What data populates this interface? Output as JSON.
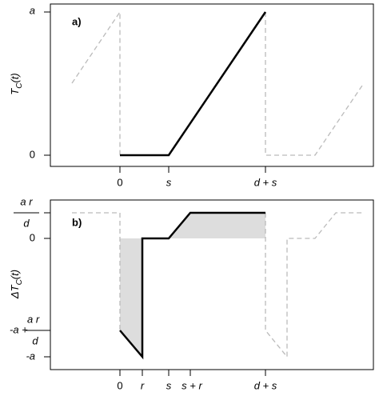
{
  "panel_a": {
    "label": "a)",
    "y_title": {
      "symbol": "T",
      "subscript": "C",
      "argument": "(t)"
    },
    "y_ticks": [
      "a",
      "0"
    ],
    "x_ticks": [
      "0",
      "s",
      "d + s"
    ]
  },
  "panel_b": {
    "label": "b)",
    "y_title": {
      "symbol": "ΔT",
      "subscript": "C",
      "argument": "(t)"
    },
    "y_ticks": [
      {
        "numerator": "a r",
        "denominator": "d"
      },
      "0",
      {
        "prefix": "-a +",
        "numerator": "a r",
        "denominator": "d"
      },
      "-a"
    ],
    "x_ticks": [
      "0",
      "r",
      "s",
      "s + r",
      "d + s"
    ]
  }
}
